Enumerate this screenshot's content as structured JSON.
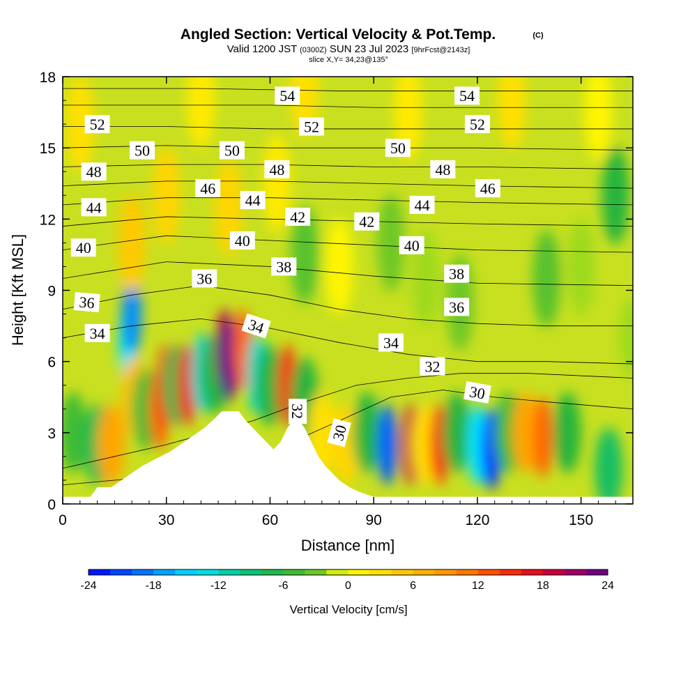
{
  "chart_data": {
    "type": "heatmap",
    "title": "Angled Section: Vertical Velocity & Pot.Temp.",
    "title_mark": "(C)",
    "subtitle_parts": [
      "Valid 1200 JST ",
      "(0300Z)",
      " SUN 23 Jul 2023 ",
      "[9hrFcst@2143z]"
    ],
    "slice_label": "slice X,Y= 34,23@135°",
    "xlabel": "Distance [nm]",
    "ylabel": "Height [Kft MSL]",
    "xlim": [
      0,
      165
    ],
    "ylim": [
      0,
      18
    ],
    "x_ticks": [
      "0",
      "30",
      "60",
      "90",
      "120",
      "150"
    ],
    "x_tick_values": [
      0,
      30,
      60,
      90,
      120,
      150
    ],
    "y_ticks": [
      "0",
      "3",
      "6",
      "9",
      "12",
      "15",
      "18"
    ],
    "y_tick_values": [
      0,
      3,
      6,
      9,
      12,
      15,
      18
    ],
    "colorbar": {
      "label": "Vertical Velocity [cm/s]",
      "min": -24,
      "max": 24,
      "step": 2,
      "tick_labels": [
        "-24",
        "-18",
        "-12",
        "-6",
        "0",
        "6",
        "12",
        "18",
        "24"
      ],
      "tick_values": [
        -24,
        -18,
        -12,
        -6,
        0,
        6,
        12,
        18,
        24
      ]
    },
    "velocity_cells": [
      {
        "x": 3,
        "y": 3.0,
        "w": -5
      },
      {
        "x": 10,
        "y": 2.5,
        "w": -7
      },
      {
        "x": 14,
        "y": 2.5,
        "w": 8
      },
      {
        "x": 19,
        "y": 6.8,
        "w": -14
      },
      {
        "x": 20,
        "y": 8.0,
        "w": -18
      },
      {
        "x": 21,
        "y": 4.5,
        "w": 6
      },
      {
        "x": 24,
        "y": 4.0,
        "w": -5
      },
      {
        "x": 28,
        "y": 4.0,
        "w": 12
      },
      {
        "x": 30,
        "y": 5.0,
        "w": 15
      },
      {
        "x": 33,
        "y": 5.0,
        "w": -7
      },
      {
        "x": 36,
        "y": 5.0,
        "w": 16
      },
      {
        "x": 40,
        "y": 5.5,
        "w": -12
      },
      {
        "x": 44,
        "y": 5.5,
        "w": -6
      },
      {
        "x": 47,
        "y": 6.5,
        "w": 20
      },
      {
        "x": 48,
        "y": 6.0,
        "w": 24
      },
      {
        "x": 52,
        "y": 6.5,
        "w": 12
      },
      {
        "x": 56,
        "y": 5.5,
        "w": -12
      },
      {
        "x": 60,
        "y": 5.0,
        "w": -6
      },
      {
        "x": 65,
        "y": 5.0,
        "w": 15
      },
      {
        "x": 70,
        "y": 4.5,
        "w": -6
      },
      {
        "x": 75,
        "y": 3.0,
        "w": 3
      },
      {
        "x": 82,
        "y": 2.5,
        "w": 4
      },
      {
        "x": 88,
        "y": 3.0,
        "w": -6
      },
      {
        "x": 94,
        "y": 2.5,
        "w": -20
      },
      {
        "x": 101,
        "y": 2.5,
        "w": 19
      },
      {
        "x": 105,
        "y": 2.5,
        "w": 3
      },
      {
        "x": 109,
        "y": 2.5,
        "w": 15
      },
      {
        "x": 114,
        "y": 3.0,
        "w": -6
      },
      {
        "x": 120,
        "y": 2.5,
        "w": -14
      },
      {
        "x": 124,
        "y": 2.3,
        "w": -22
      },
      {
        "x": 129,
        "y": 3.0,
        "w": -5
      },
      {
        "x": 134,
        "y": 3.0,
        "w": 8
      },
      {
        "x": 139,
        "y": 2.8,
        "w": 12
      },
      {
        "x": 146,
        "y": 3.0,
        "w": -6
      },
      {
        "x": 158,
        "y": 1.5,
        "w": -8
      },
      {
        "x": 20,
        "y": 11.0,
        "w": 5
      },
      {
        "x": 30,
        "y": 13.0,
        "w": 4
      },
      {
        "x": 48,
        "y": 12.5,
        "w": 4
      },
      {
        "x": 62,
        "y": 13.5,
        "w": 2
      },
      {
        "x": 70,
        "y": 10.5,
        "w": -4
      },
      {
        "x": 80,
        "y": 10.0,
        "w": 1
      },
      {
        "x": 95,
        "y": 11.0,
        "w": -3
      },
      {
        "x": 105,
        "y": 9.5,
        "w": -2
      },
      {
        "x": 115,
        "y": 8.5,
        "w": -3
      },
      {
        "x": 140,
        "y": 9.5,
        "w": -4
      },
      {
        "x": 150,
        "y": 10.0,
        "w": -2
      },
      {
        "x": 160,
        "y": 13.0,
        "w": -6
      },
      {
        "x": 165,
        "y": 7.0,
        "w": -2
      },
      {
        "x": 5,
        "y": 16.0,
        "w": 3
      },
      {
        "x": 40,
        "y": 17.0,
        "w": 2
      },
      {
        "x": 70,
        "y": 17.5,
        "w": 3
      },
      {
        "x": 100,
        "y": 16.5,
        "w": 2
      },
      {
        "x": 130,
        "y": 17.0,
        "w": 3
      },
      {
        "x": 155,
        "y": 16.5,
        "w": 1
      }
    ],
    "terrain": [
      [
        0,
        0.3
      ],
      [
        8,
        0.3
      ],
      [
        10,
        0.7
      ],
      [
        14,
        0.7
      ],
      [
        17,
        1.0
      ],
      [
        20,
        1.3
      ],
      [
        23,
        1.6
      ],
      [
        27,
        1.9
      ],
      [
        31,
        2.2
      ],
      [
        35,
        2.6
      ],
      [
        38,
        2.9
      ],
      [
        41,
        3.2
      ],
      [
        44,
        3.6
      ],
      [
        46,
        3.9
      ],
      [
        51,
        3.9
      ],
      [
        53,
        3.5
      ],
      [
        55,
        3.2
      ],
      [
        57,
        2.9
      ],
      [
        59,
        2.6
      ],
      [
        61,
        2.3
      ],
      [
        63,
        2.6
      ],
      [
        65,
        3.2
      ],
      [
        67,
        3.6
      ],
      [
        68,
        3.6
      ],
      [
        70,
        3.2
      ],
      [
        72,
        2.6
      ],
      [
        74,
        2.0
      ],
      [
        76,
        1.6
      ],
      [
        78,
        1.3
      ],
      [
        80,
        1.0
      ],
      [
        83,
        0.7
      ],
      [
        86,
        0.5
      ],
      [
        90,
        0.3
      ],
      [
        165,
        0.3
      ]
    ],
    "theta_contours": [
      {
        "value": "30",
        "points": [
          [
            0,
            0.8
          ],
          [
            30,
            1.2
          ],
          [
            60,
            2.2
          ],
          [
            80,
            3.5
          ],
          [
            95,
            4.5
          ],
          [
            110,
            4.8
          ],
          [
            125,
            4.5
          ],
          [
            140,
            4.3
          ],
          [
            165,
            4.0
          ]
        ],
        "label_pos": [
          80,
          3.0
        ],
        "label_rot": -75
      },
      {
        "value": "32",
        "points": [
          [
            0,
            1.5
          ],
          [
            30,
            2.5
          ],
          [
            55,
            3.5
          ],
          [
            68,
            4.2
          ],
          [
            85,
            5.0
          ],
          [
            100,
            5.3
          ],
          [
            115,
            5.5
          ],
          [
            135,
            5.5
          ],
          [
            165,
            5.3
          ]
        ],
        "label_pos": [
          68,
          3.9
        ],
        "label_rot": 90
      },
      {
        "value": "30",
        "points": [],
        "label_pos": [
          120,
          4.7
        ],
        "label_rot": 10
      },
      {
        "value": "32",
        "points": [],
        "label_pos": [
          107,
          5.8
        ],
        "label_rot": 0
      },
      {
        "value": "34",
        "points": [
          [
            0,
            7.0
          ],
          [
            20,
            7.5
          ],
          [
            40,
            7.8
          ],
          [
            60,
            7.4
          ],
          [
            80,
            6.8
          ],
          [
            100,
            6.3
          ],
          [
            120,
            6.0
          ],
          [
            140,
            6.0
          ],
          [
            165,
            5.9
          ]
        ],
        "label_pos": [
          10,
          7.2
        ],
        "label_rot": 0
      },
      {
        "value": "34",
        "points": [],
        "label_pos": [
          56,
          7.5
        ],
        "label_rot": 18
      },
      {
        "value": "34",
        "points": [],
        "label_pos": [
          95,
          6.8
        ],
        "label_rot": 0
      },
      {
        "value": "36",
        "points": [
          [
            0,
            8.2
          ],
          [
            20,
            8.8
          ],
          [
            40,
            9.2
          ],
          [
            60,
            8.8
          ],
          [
            80,
            8.2
          ],
          [
            100,
            7.8
          ],
          [
            120,
            7.6
          ],
          [
            140,
            7.5
          ],
          [
            165,
            7.5
          ]
        ],
        "label_pos": [
          7,
          8.5
        ],
        "label_rot": 5
      },
      {
        "value": "36",
        "points": [],
        "label_pos": [
          41,
          9.5
        ],
        "label_rot": 0
      },
      {
        "value": "36",
        "points": [],
        "label_pos": [
          114,
          8.3
        ],
        "label_rot": 0
      },
      {
        "value": "38",
        "points": [
          [
            0,
            9.5
          ],
          [
            30,
            10.2
          ],
          [
            60,
            10.0
          ],
          [
            90,
            9.6
          ],
          [
            120,
            9.3
          ],
          [
            165,
            9.2
          ]
        ],
        "label_pos": [
          64,
          10.0
        ],
        "label_rot": 0
      },
      {
        "value": "38",
        "points": [],
        "label_pos": [
          114,
          9.7
        ],
        "label_rot": 0
      },
      {
        "value": "40",
        "points": [
          [
            0,
            10.7
          ],
          [
            30,
            11.3
          ],
          [
            60,
            11.1
          ],
          [
            90,
            10.9
          ],
          [
            120,
            10.7
          ],
          [
            165,
            10.6
          ]
        ],
        "label_pos": [
          6,
          10.8
        ],
        "label_rot": 0
      },
      {
        "value": "40",
        "points": [],
        "label_pos": [
          52,
          11.1
        ],
        "label_rot": 0
      },
      {
        "value": "40",
        "points": [],
        "label_pos": [
          101,
          10.9
        ],
        "label_rot": 0
      },
      {
        "value": "42",
        "points": [
          [
            0,
            11.7
          ],
          [
            30,
            12.1
          ],
          [
            60,
            12.0
          ],
          [
            90,
            11.9
          ],
          [
            120,
            11.8
          ],
          [
            165,
            11.7
          ]
        ],
        "label_pos": [
          68,
          12.1
        ],
        "label_rot": 0
      },
      {
        "value": "42",
        "points": [],
        "label_pos": [
          88,
          11.9
        ],
        "label_rot": 0
      },
      {
        "value": "44",
        "points": [
          [
            0,
            12.6
          ],
          [
            30,
            12.9
          ],
          [
            60,
            12.9
          ],
          [
            90,
            12.8
          ],
          [
            120,
            12.7
          ],
          [
            165,
            12.6
          ]
        ],
        "label_pos": [
          9,
          12.5
        ],
        "label_rot": 0
      },
      {
        "value": "44",
        "points": [],
        "label_pos": [
          55,
          12.8
        ],
        "label_rot": 0
      },
      {
        "value": "44",
        "points": [],
        "label_pos": [
          104,
          12.6
        ],
        "label_rot": 0
      },
      {
        "value": "46",
        "points": [
          [
            0,
            13.4
          ],
          [
            30,
            13.6
          ],
          [
            60,
            13.6
          ],
          [
            90,
            13.5
          ],
          [
            120,
            13.4
          ],
          [
            165,
            13.3
          ]
        ],
        "label_pos": [
          42,
          13.3
        ],
        "label_rot": 0
      },
      {
        "value": "46",
        "points": [],
        "label_pos": [
          123,
          13.3
        ],
        "label_rot": 0
      },
      {
        "value": "48",
        "points": [
          [
            0,
            14.2
          ],
          [
            30,
            14.3
          ],
          [
            60,
            14.3
          ],
          [
            90,
            14.2
          ],
          [
            120,
            14.2
          ],
          [
            165,
            14.1
          ]
        ],
        "label_pos": [
          9,
          14.0
        ],
        "label_rot": 0
      },
      {
        "value": "48",
        "points": [],
        "label_pos": [
          62,
          14.1
        ],
        "label_rot": 0
      },
      {
        "value": "48",
        "points": [],
        "label_pos": [
          110,
          14.1
        ],
        "label_rot": 0
      },
      {
        "value": "50",
        "points": [
          [
            0,
            15.0
          ],
          [
            30,
            15.1
          ],
          [
            60,
            15.0
          ],
          [
            90,
            15.0
          ],
          [
            120,
            15.0
          ],
          [
            165,
            14.9
          ]
        ],
        "label_pos": [
          23,
          14.9
        ],
        "label_rot": 0
      },
      {
        "value": "50",
        "points": [],
        "label_pos": [
          49,
          14.9
        ],
        "label_rot": 0
      },
      {
        "value": "50",
        "points": [],
        "label_pos": [
          97,
          15.0
        ],
        "label_rot": 0
      },
      {
        "value": "52",
        "points": [
          [
            0,
            15.9
          ],
          [
            30,
            15.9
          ],
          [
            60,
            15.8
          ],
          [
            90,
            15.8
          ],
          [
            120,
            15.8
          ],
          [
            165,
            15.8
          ]
        ],
        "label_pos": [
          10,
          16.0
        ],
        "label_rot": 0
      },
      {
        "value": "52",
        "points": [],
        "label_pos": [
          72,
          15.9
        ],
        "label_rot": 0
      },
      {
        "value": "52",
        "points": [],
        "label_pos": [
          120,
          16.0
        ],
        "label_rot": 0
      },
      {
        "value": "54",
        "points": [
          [
            0,
            16.8
          ],
          [
            30,
            16.8
          ],
          [
            60,
            16.8
          ],
          [
            90,
            16.7
          ],
          [
            120,
            16.7
          ],
          [
            165,
            16.7
          ]
        ],
        "label_pos": [
          65,
          17.2
        ],
        "label_rot": 0
      },
      {
        "value": "54",
        "points": [],
        "label_pos": [
          117,
          17.2
        ],
        "label_rot": 0
      },
      {
        "value": "",
        "points": [
          [
            0,
            17.5
          ],
          [
            40,
            17.5
          ],
          [
            80,
            17.4
          ],
          [
            120,
            17.4
          ],
          [
            165,
            17.4
          ]
        ],
        "label_pos": null,
        "label_rot": 0
      }
    ]
  }
}
